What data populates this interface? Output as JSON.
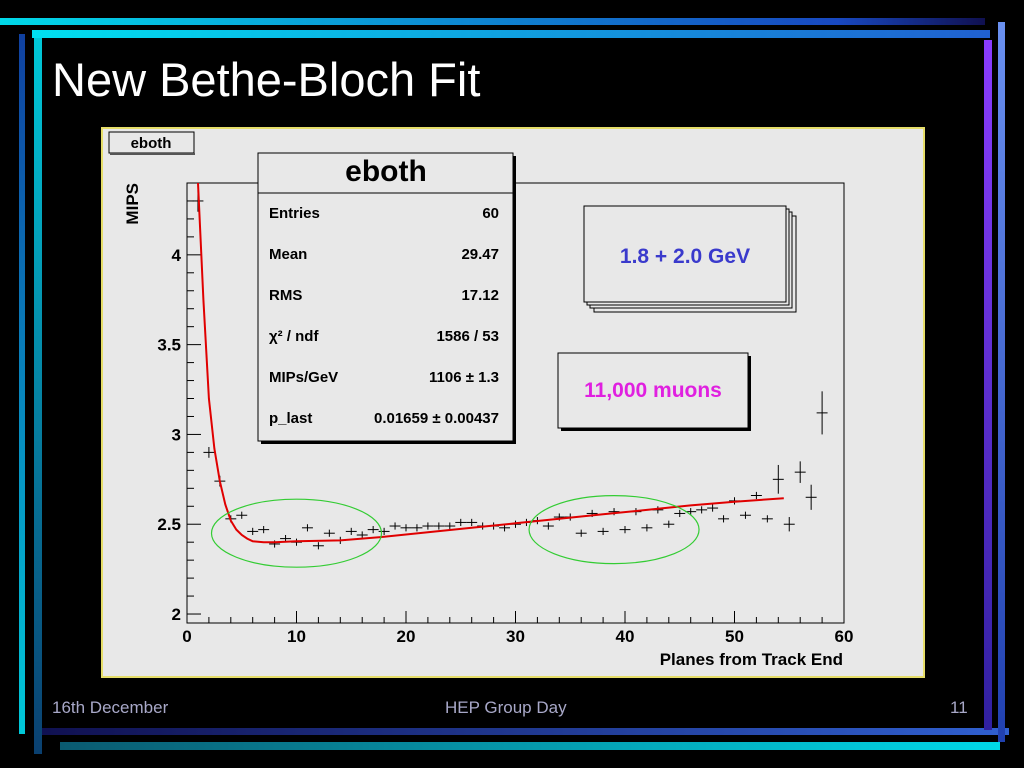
{
  "slide": {
    "title": "New Bethe-Bloch Fit",
    "footer_left": "16th December",
    "footer_center": "HEP Group Day",
    "footer_right": "11"
  },
  "colors": {
    "background": "#000000",
    "accent_cyan": "#00d8e8",
    "accent_blue": "#5080e8",
    "accent_purple": "#8a3cff",
    "plot_bg": "#e8e8e8",
    "fit_line": "#e00000",
    "highlight_ellipse": "#33cc33",
    "energy_label": "#3a3acc",
    "muon_label": "#e020e0"
  },
  "chart_data": {
    "type": "scatter",
    "histogram_name": "eboth",
    "title": "",
    "xlabel": "Planes from Track End",
    "ylabel": "MIPS",
    "xlim": [
      0,
      60
    ],
    "ylim": [
      1.95,
      4.4
    ],
    "x_ticks": [
      "0",
      "10",
      "20",
      "30",
      "40",
      "50",
      "60"
    ],
    "y_ticks": [
      "2",
      "2.5",
      "3",
      "3.5",
      "4"
    ],
    "grid": false,
    "stats_box": {
      "title": "eboth",
      "rows": [
        {
          "label": "Entries",
          "value": "60"
        },
        {
          "label": "Mean",
          "value": "29.47"
        },
        {
          "label": "RMS",
          "value": "17.12"
        },
        {
          "label": "χ² / ndf",
          "value": "1586 / 53"
        },
        {
          "label": "MIPs/GeV",
          "value": "1106 ± 1.3"
        },
        {
          "label": "p_last",
          "value": "0.01659 ± 0.00437"
        }
      ]
    },
    "annotations": [
      "1.8 + 2.0 GeV",
      "11,000 muons"
    ],
    "series": [
      {
        "x": [
          1,
          2,
          3,
          4,
          5,
          6,
          7,
          8,
          9,
          10,
          11,
          12,
          13,
          14,
          15,
          16,
          17,
          18,
          19,
          20,
          21,
          22,
          23,
          24,
          25,
          26,
          27,
          28,
          29,
          30,
          31,
          32,
          33,
          34,
          35,
          36,
          37,
          38,
          39,
          40,
          41,
          42,
          43,
          44,
          45,
          46,
          47,
          48,
          49,
          50,
          51,
          52,
          53,
          54,
          55,
          56,
          57,
          58
        ],
        "y": [
          4.3,
          2.9,
          2.74,
          2.53,
          2.55,
          2.46,
          2.47,
          2.39,
          2.42,
          2.4,
          2.48,
          2.38,
          2.45,
          2.41,
          2.46,
          2.44,
          2.47,
          2.46,
          2.49,
          2.48,
          2.48,
          2.49,
          2.49,
          2.49,
          2.51,
          2.51,
          2.49,
          2.49,
          2.48,
          2.5,
          2.51,
          2.52,
          2.49,
          2.54,
          2.54,
          2.45,
          2.56,
          2.46,
          2.57,
          2.47,
          2.57,
          2.48,
          2.58,
          2.5,
          2.56,
          2.57,
          2.58,
          2.59,
          2.53,
          2.63,
          2.55,
          2.66,
          2.53,
          2.75,
          2.5,
          2.79,
          2.65,
          3.12
        ],
        "y_err": [
          0.06,
          0.03,
          0.03,
          0.02,
          0.02,
          0.02,
          0.02,
          0.02,
          0.02,
          0.02,
          0.02,
          0.02,
          0.02,
          0.02,
          0.02,
          0.02,
          0.02,
          0.02,
          0.02,
          0.02,
          0.02,
          0.02,
          0.02,
          0.02,
          0.02,
          0.02,
          0.02,
          0.02,
          0.02,
          0.02,
          0.02,
          0.02,
          0.02,
          0.02,
          0.02,
          0.02,
          0.02,
          0.02,
          0.02,
          0.02,
          0.02,
          0.02,
          0.02,
          0.02,
          0.02,
          0.02,
          0.02,
          0.02,
          0.02,
          0.02,
          0.02,
          0.02,
          0.02,
          0.08,
          0.04,
          0.06,
          0.07,
          0.12
        ]
      }
    ],
    "fit_curve": {
      "x": [
        1,
        1.5,
        2,
        2.5,
        3,
        3.5,
        4,
        4.5,
        5,
        5.5,
        6,
        7,
        8,
        10,
        14,
        18,
        22,
        26,
        30,
        34,
        38,
        42,
        46,
        50,
        54.5
      ],
      "y": [
        4.4,
        3.75,
        3.2,
        2.92,
        2.74,
        2.61,
        2.52,
        2.47,
        2.44,
        2.42,
        2.405,
        2.4,
        2.4,
        2.405,
        2.41,
        2.43,
        2.455,
        2.48,
        2.505,
        2.53,
        2.555,
        2.58,
        2.605,
        2.625,
        2.645
      ]
    },
    "highlight_regions": [
      {
        "cx": 10,
        "cy": 2.45
      },
      {
        "cx": 39,
        "cy": 2.47
      }
    ]
  }
}
